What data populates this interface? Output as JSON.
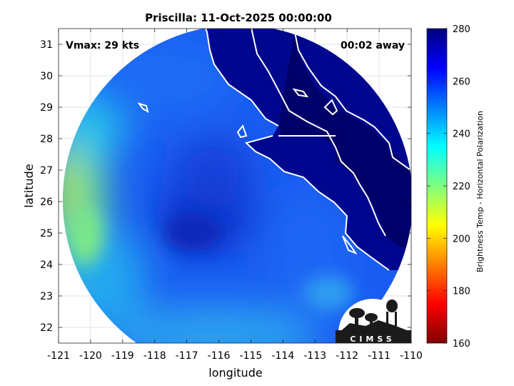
{
  "title": "Priscilla: 11-Oct-2025 00:00:00",
  "vmax_text": "Vmax: 29 kts",
  "away_text": "00:02 away",
  "xlabel": "longitude",
  "ylabel": "latitude",
  "x_ticks": [
    "-121",
    "-120",
    "-119",
    "-118",
    "-117",
    "-116",
    "-115",
    "-114",
    "-113",
    "-112",
    "-111",
    "-110"
  ],
  "y_ticks": [
    "22",
    "23",
    "24",
    "25",
    "26",
    "27",
    "28",
    "29",
    "30",
    "31"
  ],
  "colorbar": {
    "label": "Brightness Temp - Horizontal Polarization",
    "ticks": [
      "280",
      "260",
      "240",
      "220",
      "200",
      "180",
      "160"
    ],
    "colormap": "jet",
    "range": [
      160,
      280
    ]
  },
  "logo_text": "CIMSS",
  "colors": {
    "land_dark": "#00007f",
    "coastline": "#ffffff",
    "background": "#ffffff"
  },
  "chart_data": {
    "type": "heatmap",
    "title": "Priscilla: 11-Oct-2025 00:00:00",
    "xlabel": "longitude",
    "ylabel": "latitude",
    "xlim": [
      -121,
      -110
    ],
    "ylim": [
      21.5,
      31.5
    ],
    "clim": [
      160,
      280
    ],
    "grid": true
  }
}
